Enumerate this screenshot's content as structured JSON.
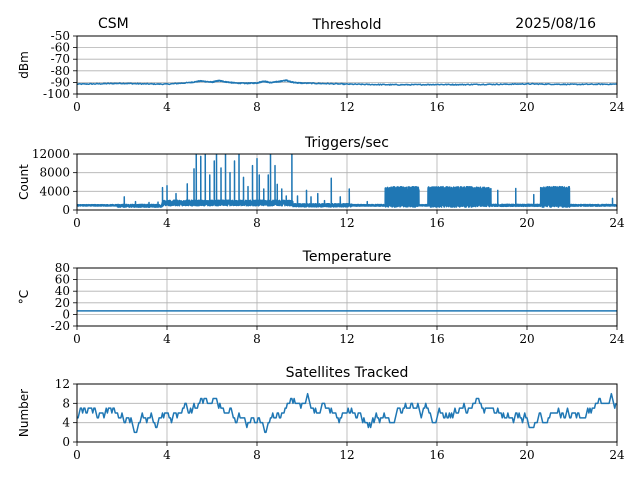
{
  "header": {
    "left": "CSM",
    "right": "2025/08/16"
  },
  "colors": {
    "line": "#1f77b4",
    "grid": "#b0b0b0",
    "axis": "#000000"
  },
  "chart_data": [
    {
      "type": "line",
      "title": "Threshold",
      "ylabel": "dBm",
      "xlabel": "",
      "xlim": [
        0,
        24
      ],
      "ylim": [
        -100,
        -50
      ],
      "xticks": [
        0,
        4,
        8,
        12,
        16,
        20,
        24
      ],
      "yticks": [
        -100,
        -90,
        -80,
        -70,
        -60,
        -50
      ],
      "grid": true,
      "series": [
        {
          "x": [
            0,
            1,
            2,
            3,
            4,
            5,
            5.5,
            6,
            6.3,
            6.6,
            7,
            7.5,
            8,
            8.3,
            8.6,
            9,
            9.3,
            9.6,
            10,
            11,
            12,
            13,
            14,
            15,
            16,
            17,
            18,
            19,
            20,
            21,
            22,
            23,
            24
          ],
          "y": [
            -91.5,
            -91.2,
            -90.8,
            -91.3,
            -91.5,
            -90.2,
            -88.8,
            -89.8,
            -88.5,
            -89.5,
            -90.5,
            -90.8,
            -90.5,
            -89,
            -90.2,
            -89.2,
            -88.2,
            -90,
            -90.6,
            -91,
            -91.5,
            -91.8,
            -92,
            -92,
            -91.8,
            -91.9,
            -91.7,
            -91.6,
            -91.3,
            -91.5,
            -91.7,
            -91.6,
            -91.5
          ]
        }
      ]
    },
    {
      "type": "line",
      "title": "Triggers/sec",
      "ylabel": "Count",
      "xlabel": "",
      "xlim": [
        0,
        24
      ],
      "ylim": [
        0,
        12000
      ],
      "xticks": [
        0,
        4,
        8,
        12,
        16,
        20,
        24
      ],
      "yticks": [
        0,
        4000,
        8000,
        12000
      ],
      "grid": true,
      "series": [
        {
          "segments": [
            {
              "x0": 0,
              "x1": 1.8,
              "base": 1000,
              "noise": 300,
              "spikes": []
            },
            {
              "x0": 1.8,
              "x1": 3.8,
              "base": 900,
              "noise": 600,
              "spikes": [
                [
                  2.1,
                  2800
                ],
                [
                  2.6,
                  1800
                ],
                [
                  3.2,
                  1600
                ],
                [
                  3.6,
                  1700
                ]
              ]
            },
            {
              "x0": 3.8,
              "x1": 9.6,
              "base": 1500,
              "noise": 1200,
              "spikes": [
                [
                  3.8,
                  4800
                ],
                [
                  4.0,
                  5200
                ],
                [
                  4.4,
                  3500
                ],
                [
                  4.9,
                  5600
                ],
                [
                  5.2,
                  8800
                ],
                [
                  5.3,
                  12000
                ],
                [
                  5.5,
                  11500
                ],
                [
                  5.7,
                  12000
                ],
                [
                  5.9,
                  7500
                ],
                [
                  6.1,
                  10500
                ],
                [
                  6.2,
                  12000
                ],
                [
                  6.4,
                  9000
                ],
                [
                  6.6,
                  12000
                ],
                [
                  6.8,
                  8000
                ],
                [
                  7.0,
                  10500
                ],
                [
                  7.2,
                  12000
                ],
                [
                  7.4,
                  7000
                ],
                [
                  7.6,
                  5000
                ],
                [
                  7.8,
                  9500
                ],
                [
                  8.0,
                  11000
                ],
                [
                  8.1,
                  7500
                ],
                [
                  8.3,
                  4500
                ],
                [
                  8.5,
                  7500
                ],
                [
                  8.6,
                  12000
                ],
                [
                  8.8,
                  9500
                ],
                [
                  8.9,
                  5500
                ],
                [
                  9.1,
                  4500
                ],
                [
                  9.3,
                  3000
                ],
                [
                  9.55,
                  12000
                ]
              ]
            },
            {
              "x0": 9.6,
              "x1": 12.2,
              "base": 1000,
              "noise": 700,
              "spikes": [
                [
                  9.8,
                  3000
                ],
                [
                  10.2,
                  4200
                ],
                [
                  10.4,
                  2800
                ],
                [
                  10.7,
                  3500
                ],
                [
                  11.0,
                  2000
                ],
                [
                  11.3,
                  6800
                ],
                [
                  11.7,
                  2800
                ],
                [
                  12.1,
                  4500
                ]
              ]
            },
            {
              "x0": 12.2,
              "x1": 13.7,
              "base": 1000,
              "noise": 350,
              "spikes": [
                [
                  12.9,
                  1800
                ]
              ]
            },
            {
              "x0": 13.7,
              "x1": 15.2,
              "base": 2800,
              "noise": 2200,
              "spikes": []
            },
            {
              "x0": 15.2,
              "x1": 15.6,
              "base": 1000,
              "noise": 300,
              "spikes": []
            },
            {
              "x0": 15.6,
              "x1": 17.6,
              "base": 2800,
              "noise": 2200,
              "spikes": []
            },
            {
              "x0": 17.6,
              "x1": 18.4,
              "base": 2800,
              "noise": 2100,
              "spikes": []
            },
            {
              "x0": 18.4,
              "x1": 20.6,
              "base": 1000,
              "noise": 450,
              "spikes": [
                [
                  18.7,
                  4200
                ],
                [
                  19.5,
                  4600
                ],
                [
                  20.3,
                  3300
                ]
              ]
            },
            {
              "x0": 20.6,
              "x1": 21.9,
              "base": 2800,
              "noise": 2200,
              "spikes": []
            },
            {
              "x0": 21.9,
              "x1": 24,
              "base": 1000,
              "noise": 350,
              "spikes": [
                [
                  23.8,
                  2500
                ]
              ]
            }
          ]
        }
      ]
    },
    {
      "type": "line",
      "title": "Temperature",
      "ylabel": "°C",
      "xlabel": "",
      "xlim": [
        0,
        24
      ],
      "ylim": [
        -20,
        80
      ],
      "xticks": [
        0,
        4,
        8,
        12,
        16,
        20,
        24
      ],
      "yticks": [
        -20,
        0,
        20,
        40,
        60,
        80
      ],
      "grid": true,
      "series": [
        {
          "x": [
            0,
            24
          ],
          "y": [
            6,
            6
          ]
        }
      ]
    },
    {
      "type": "line",
      "title": "Satellites Tracked",
      "ylabel": "Number",
      "xlabel": "",
      "xlim": [
        0,
        24
      ],
      "ylim": [
        0,
        12
      ],
      "xticks": [
        0,
        4,
        8,
        12,
        16,
        20,
        24
      ],
      "yticks": [
        0,
        4,
        8,
        12
      ],
      "grid": true,
      "series": [
        {
          "min": 2,
          "max": 10,
          "mean": 5.5
        }
      ]
    }
  ]
}
